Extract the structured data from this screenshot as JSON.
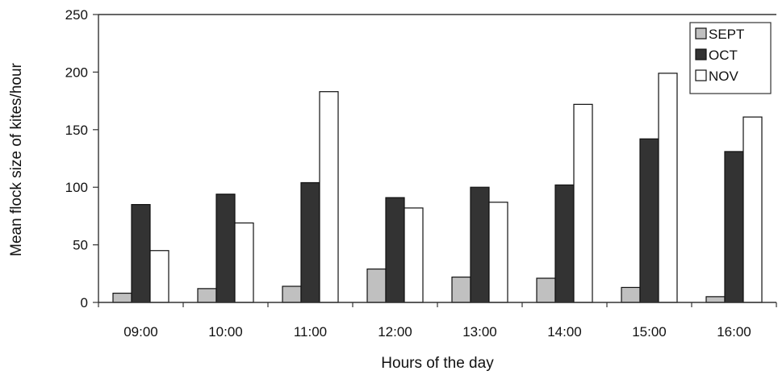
{
  "chart_data": {
    "type": "bar",
    "title": "",
    "xlabel": "Hours of the day",
    "ylabel": "Mean flock size of kites/hour",
    "categories": [
      "09:00",
      "10:00",
      "11:00",
      "12:00",
      "13:00",
      "14:00",
      "15:00",
      "16:00"
    ],
    "ylim": [
      0,
      250
    ],
    "yticks": [
      0,
      50,
      100,
      150,
      200,
      250
    ],
    "grid": false,
    "legend_position": "top-right",
    "series": [
      {
        "name": "SEPT",
        "color": "#c0c0c0",
        "values": [
          8,
          12,
          14,
          29,
          22,
          21,
          13,
          5
        ]
      },
      {
        "name": "OCT",
        "color": "#333333",
        "values": [
          85,
          94,
          104,
          91,
          100,
          102,
          142,
          131
        ]
      },
      {
        "name": "NOV",
        "color": "#ffffff",
        "values": [
          45,
          69,
          183,
          82,
          87,
          172,
          199,
          161
        ]
      }
    ]
  }
}
